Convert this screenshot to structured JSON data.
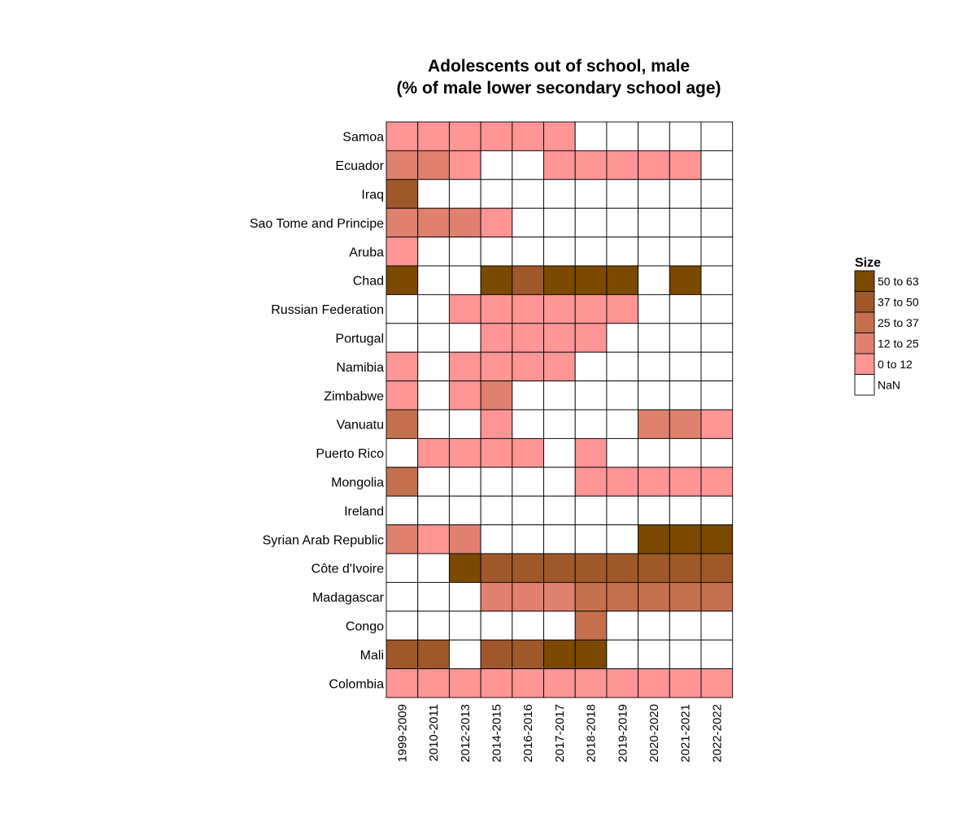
{
  "chart_data": {
    "type": "heatmap",
    "title": "Adolescents out of school, male\n(% of male lower secondary school age)",
    "xlabel": "",
    "ylabel": "",
    "x": [
      "1999-2009",
      "2010-2011",
      "2012-2013",
      "2014-2015",
      "2016-2016",
      "2017-2017",
      "2018-2018",
      "2019-2019",
      "2020-2020",
      "2021-2021",
      "2022-2022"
    ],
    "y": [
      "Samoa",
      "Ecuador",
      "Iraq",
      "Sao Tome and Principe",
      "Aruba",
      "Chad",
      "Russian Federation",
      "Portugal",
      "Namibia",
      "Zimbabwe",
      "Vanuatu",
      "Puerto Rico",
      "Mongolia",
      "Ireland",
      "Syrian Arab Republic",
      "Côte d'Ivoire",
      "Madagascar",
      "Congo",
      "Mali",
      "Colombia"
    ],
    "bins": [
      {
        "label": "50 to 63",
        "color": "#7b4a00"
      },
      {
        "label": "37 to 50",
        "color": "#a0582a"
      },
      {
        "label": "25 to 37",
        "color": "#c4704f"
      },
      {
        "label": "12 to 25",
        "color": "#e0806e"
      },
      {
        "label": "0 to 12",
        "color": "#ff9595"
      },
      {
        "label": "NaN",
        "color": "#ffffff"
      }
    ],
    "legend": {
      "title": "Size",
      "position": "right"
    },
    "grid": false,
    "matrix": [
      [
        "0 to 12",
        "0 to 12",
        "0 to 12",
        "0 to 12",
        "0 to 12",
        "0 to 12",
        "NaN",
        "NaN",
        "NaN",
        "NaN",
        "NaN"
      ],
      [
        "12 to 25",
        "12 to 25",
        "0 to 12",
        "NaN",
        "NaN",
        "0 to 12",
        "0 to 12",
        "0 to 12",
        "0 to 12",
        "0 to 12",
        "NaN"
      ],
      [
        "37 to 50",
        "NaN",
        "NaN",
        "NaN",
        "NaN",
        "NaN",
        "NaN",
        "NaN",
        "NaN",
        "NaN",
        "NaN"
      ],
      [
        "12 to 25",
        "12 to 25",
        "12 to 25",
        "0 to 12",
        "NaN",
        "NaN",
        "NaN",
        "NaN",
        "NaN",
        "NaN",
        "NaN"
      ],
      [
        "0 to 12",
        "NaN",
        "NaN",
        "NaN",
        "NaN",
        "NaN",
        "NaN",
        "NaN",
        "NaN",
        "NaN",
        "NaN"
      ],
      [
        "50 to 63",
        "NaN",
        "NaN",
        "50 to 63",
        "37 to 50",
        "50 to 63",
        "50 to 63",
        "50 to 63",
        "NaN",
        "50 to 63",
        "NaN"
      ],
      [
        "NaN",
        "NaN",
        "0 to 12",
        "0 to 12",
        "0 to 12",
        "0 to 12",
        "0 to 12",
        "0 to 12",
        "NaN",
        "NaN",
        "NaN"
      ],
      [
        "NaN",
        "NaN",
        "NaN",
        "0 to 12",
        "0 to 12",
        "0 to 12",
        "0 to 12",
        "NaN",
        "NaN",
        "NaN",
        "NaN"
      ],
      [
        "0 to 12",
        "NaN",
        "0 to 12",
        "0 to 12",
        "0 to 12",
        "0 to 12",
        "NaN",
        "NaN",
        "NaN",
        "NaN",
        "NaN"
      ],
      [
        "0 to 12",
        "NaN",
        "0 to 12",
        "12 to 25",
        "NaN",
        "NaN",
        "NaN",
        "NaN",
        "NaN",
        "NaN",
        "NaN"
      ],
      [
        "25 to 37",
        "NaN",
        "NaN",
        "0 to 12",
        "NaN",
        "NaN",
        "NaN",
        "NaN",
        "12 to 25",
        "12 to 25",
        "0 to 12"
      ],
      [
        "NaN",
        "0 to 12",
        "0 to 12",
        "0 to 12",
        "0 to 12",
        "NaN",
        "0 to 12",
        "NaN",
        "NaN",
        "NaN",
        "NaN"
      ],
      [
        "25 to 37",
        "NaN",
        "NaN",
        "NaN",
        "NaN",
        "NaN",
        "0 to 12",
        "0 to 12",
        "0 to 12",
        "0 to 12",
        "0 to 12"
      ],
      [
        "NaN",
        "NaN",
        "NaN",
        "NaN",
        "NaN",
        "NaN",
        "NaN",
        "NaN",
        "NaN",
        "NaN",
        "NaN"
      ],
      [
        "12 to 25",
        "0 to 12",
        "12 to 25",
        "NaN",
        "NaN",
        "NaN",
        "NaN",
        "NaN",
        "50 to 63",
        "50 to 63",
        "50 to 63"
      ],
      [
        "NaN",
        "NaN",
        "50 to 63",
        "37 to 50",
        "37 to 50",
        "37 to 50",
        "37 to 50",
        "37 to 50",
        "37 to 50",
        "37 to 50",
        "37 to 50"
      ],
      [
        "NaN",
        "NaN",
        "NaN",
        "12 to 25",
        "12 to 25",
        "12 to 25",
        "25 to 37",
        "25 to 37",
        "25 to 37",
        "25 to 37",
        "25 to 37"
      ],
      [
        "NaN",
        "NaN",
        "NaN",
        "NaN",
        "NaN",
        "NaN",
        "25 to 37",
        "NaN",
        "NaN",
        "NaN",
        "NaN"
      ],
      [
        "37 to 50",
        "37 to 50",
        "NaN",
        "37 to 50",
        "37 to 50",
        "50 to 63",
        "50 to 63",
        "NaN",
        "NaN",
        "NaN",
        "NaN"
      ],
      [
        "0 to 12",
        "0 to 12",
        "0 to 12",
        "0 to 12",
        "0 to 12",
        "0 to 12",
        "0 to 12",
        "0 to 12",
        "0 to 12",
        "0 to 12",
        "0 to 12"
      ]
    ]
  }
}
